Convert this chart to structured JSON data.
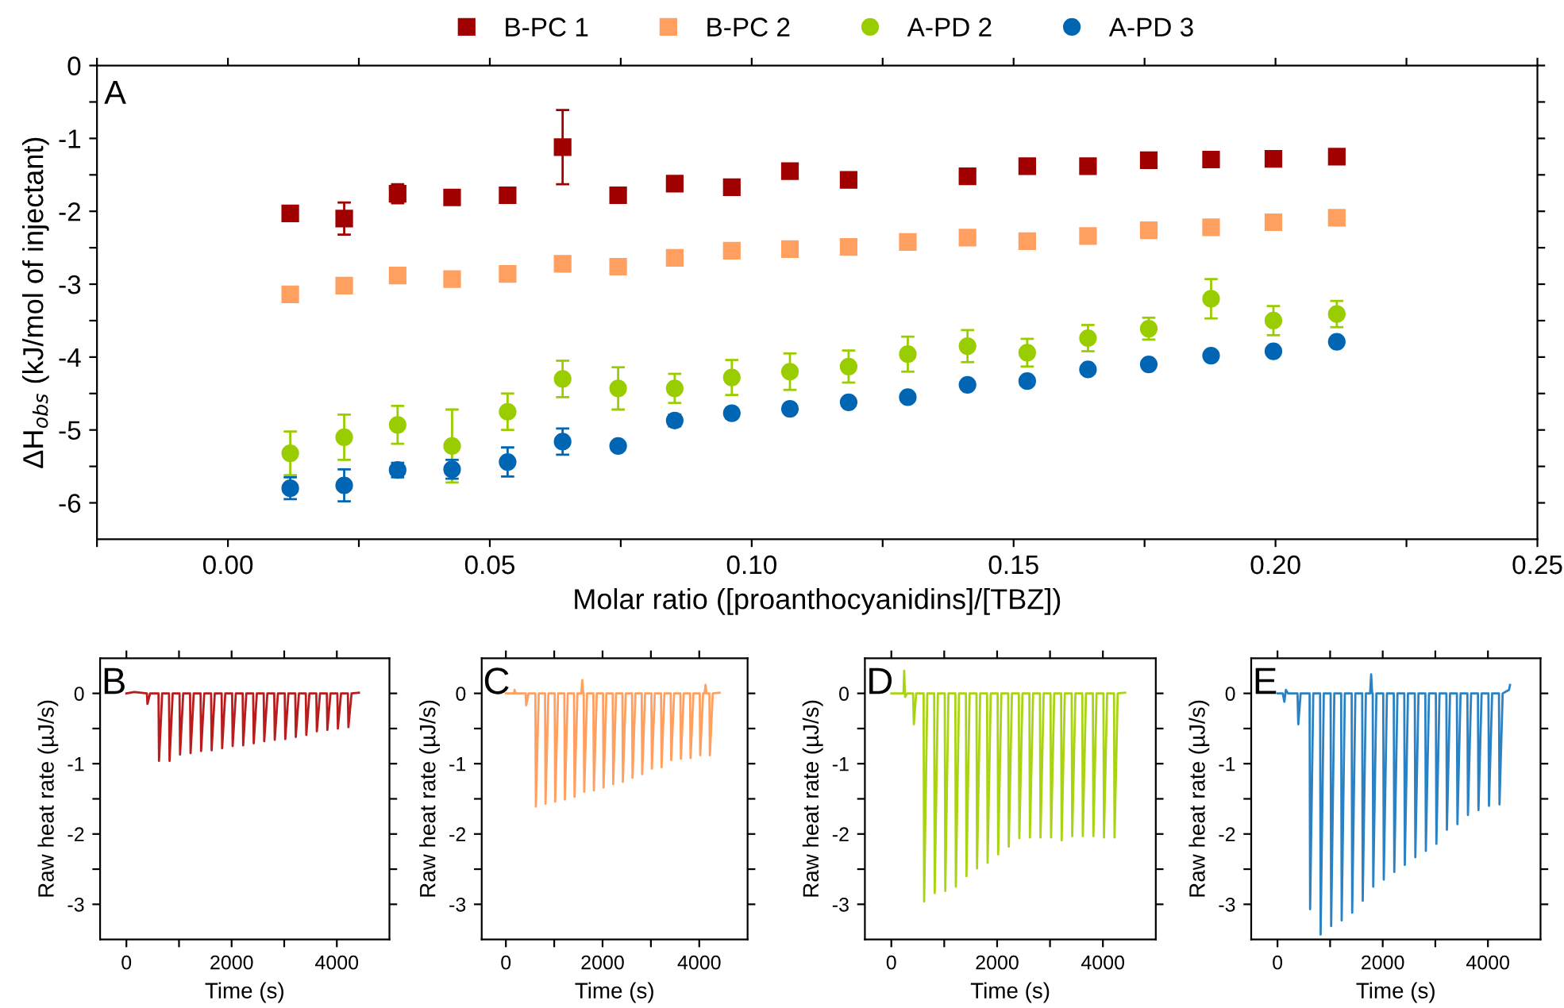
{
  "chart_data": [
    {
      "type": "scatter",
      "xlabel": "Molar ratio ([proanthocyanidins]/[TBZ])",
      "ylabel": "ΔH$_{obs}$ (kJ/mol of injectant)",
      "annotations": [
        "A"
      ],
      "legend": "top",
      "xlim": [
        -0.025,
        0.25
      ],
      "xticks": [
        {
          "value": -0.025,
          "label": null
        },
        {
          "value": 0,
          "label": "0.00"
        },
        {
          "value": 0.025,
          "label": null
        },
        {
          "value": 0.05,
          "label": "0.05"
        },
        {
          "value": 0.075,
          "label": null
        },
        {
          "value": 0.1,
          "label": "0.10"
        },
        {
          "value": 0.125,
          "label": null
        },
        {
          "value": 0.15,
          "label": "0.15"
        },
        {
          "value": 0.175,
          "label": null
        },
        {
          "value": 0.2,
          "label": "0.20"
        },
        {
          "value": 0.225,
          "label": null
        },
        {
          "value": 0.25,
          "label": "0.25"
        }
      ],
      "ylim": [
        -6.5,
        0
      ],
      "yticks": [
        0,
        {
          "value": -0.5,
          "label": null
        },
        -1,
        {
          "value": -1.5,
          "label": null
        },
        -2,
        {
          "value": -2.5,
          "label": null
        },
        -3,
        {
          "value": -3.5,
          "label": null
        },
        -4,
        {
          "value": -4.5,
          "label": null
        },
        -5,
        {
          "value": -5.5,
          "label": null
        },
        -6
      ],
      "x": [
        0.0119,
        0.0222,
        0.0324,
        0.0428,
        0.0534,
        0.0639,
        0.0745,
        0.0853,
        0.0962,
        0.1073,
        0.1185,
        0.1298,
        0.1412,
        0.1526,
        0.1642,
        0.1758,
        0.1877,
        0.1996,
        0.2117
      ],
      "series": [
        {
          "name": "B-PC 1",
          "color": "#a00000",
          "marker": "square",
          "values": [
            -2.03,
            -2.1,
            -1.76,
            -1.81,
            -1.78,
            -1.12,
            -1.78,
            -1.62,
            -1.67,
            -1.45,
            -1.57,
            null,
            -1.52,
            -1.38,
            -1.38,
            -1.3,
            -1.29,
            -1.28,
            -1.25
          ],
          "errors": [
            0.1,
            0.22,
            0.13,
            0.05,
            0.05,
            0.51,
            0.05,
            0.05,
            0.08,
            0.05,
            0.05,
            null,
            0.05,
            0.05,
            0.05,
            0.05,
            0.05,
            0.08,
            0.05
          ]
        },
        {
          "name": "B-PC 2",
          "color": "#ffa060",
          "marker": "square",
          "values": [
            -3.14,
            -3.02,
            -2.88,
            -2.93,
            -2.86,
            -2.72,
            -2.76,
            -2.64,
            -2.54,
            -2.52,
            -2.49,
            -2.42,
            -2.36,
            -2.41,
            -2.34,
            -2.26,
            -2.22,
            -2.15,
            -2.09
          ],
          "errors": [
            0.05,
            0.05,
            0.05,
            0.05,
            0.05,
            0.05,
            0.05,
            0.05,
            0.05,
            0.05,
            0.05,
            0.05,
            0.05,
            0.05,
            0.05,
            0.07,
            0.05,
            0.05,
            0.05
          ]
        },
        {
          "name": "A-PD 2",
          "color": "#9acd00",
          "marker": "circle",
          "values": [
            -5.32,
            -5.1,
            -4.93,
            -5.22,
            -4.75,
            -4.3,
            -4.43,
            -4.43,
            -4.28,
            -4.2,
            -4.13,
            -3.96,
            -3.85,
            -3.94,
            -3.74,
            -3.61,
            -3.2,
            -3.5,
            -3.41
          ],
          "errors": [
            0.3,
            0.31,
            0.26,
            0.5,
            0.25,
            0.25,
            0.29,
            0.2,
            0.24,
            0.25,
            0.22,
            0.24,
            0.22,
            0.19,
            0.18,
            0.15,
            0.27,
            0.2,
            0.18
          ]
        },
        {
          "name": "A-PD 3",
          "color": "#0066b3",
          "marker": "circle",
          "values": [
            -5.8,
            -5.76,
            -5.55,
            -5.54,
            -5.44,
            -5.16,
            -5.22,
            -4.87,
            -4.77,
            -4.71,
            -4.62,
            -4.55,
            -4.38,
            -4.33,
            -4.17,
            -4.1,
            -3.98,
            -3.92,
            -3.79
          ],
          "errors": [
            0.15,
            0.22,
            0.1,
            0.13,
            0.2,
            0.18,
            0.04,
            0.08,
            0.07,
            0.05,
            0.05,
            0.04,
            0.04,
            0.04,
            0.04,
            0.04,
            0.04,
            0.04,
            0.04
          ]
        }
      ]
    },
    {
      "type": "line",
      "xlabel": "Time (s)",
      "ylabel": "Raw heat rate (µJ/s)",
      "annotations": [
        "B"
      ],
      "xlim": [
        -500,
        5000
      ],
      "xticks": [
        0,
        {
          "value": 1000,
          "label": null
        },
        2000,
        {
          "value": 3000,
          "label": null
        },
        4000
      ],
      "ylim": [
        -3.5,
        0.5
      ],
      "yticks": [
        0,
        {
          "value": -0.5,
          "label": null
        },
        -1,
        {
          "value": -1.5,
          "label": null
        },
        -2,
        {
          "value": -2.5,
          "label": null
        },
        -3
      ],
      "series": [
        {
          "color": "#b81c1c",
          "x": [
            0,
            150,
            390,
            400,
            450,
            610,
            620,
            680,
            810,
            820,
            880,
            1010,
            1020,
            1080,
            1210,
            1220,
            1280,
            1410,
            1420,
            1480,
            1610,
            1620,
            1680,
            1810,
            1820,
            1880,
            2010,
            2020,
            2080,
            2210,
            2220,
            2280,
            2410,
            2420,
            2480,
            2610,
            2620,
            2680,
            2810,
            2820,
            2880,
            3010,
            3020,
            3080,
            3210,
            3220,
            3280,
            3410,
            3420,
            3480,
            3610,
            3620,
            3680,
            3810,
            3820,
            3880,
            4010,
            4020,
            4080,
            4210,
            4220,
            4280,
            4420
          ],
          "values": [
            0,
            0.02,
            0,
            -0.15,
            0,
            0,
            -0.96,
            0,
            0,
            -0.96,
            0,
            0,
            -0.87,
            0,
            0,
            -0.85,
            0,
            0,
            -0.82,
            0,
            0,
            -0.81,
            0,
            0,
            -0.78,
            0,
            0,
            -0.75,
            0,
            0,
            -0.74,
            0,
            0,
            -0.71,
            0,
            0,
            -0.68,
            0,
            0,
            -0.66,
            0,
            0,
            -0.65,
            0,
            0,
            -0.62,
            0,
            0,
            -0.59,
            0,
            0,
            -0.54,
            0,
            0,
            -0.52,
            0,
            0,
            -0.5,
            0,
            0,
            -0.48,
            0,
            0.01
          ]
        }
      ]
    },
    {
      "type": "line",
      "xlabel": "Time (s)",
      "ylabel": "Raw heat rate (µJ/s)",
      "annotations": [
        "C"
      ],
      "xlim": [
        -500,
        5000
      ],
      "xticks": [
        0,
        {
          "value": 1000,
          "label": null
        },
        2000,
        {
          "value": 3000,
          "label": null
        },
        4000
      ],
      "ylim": [
        -3.5,
        0.5
      ],
      "yticks": [
        0,
        {
          "value": -0.5,
          "label": null
        },
        -1,
        {
          "value": -1.5,
          "label": null
        },
        -2,
        {
          "value": -2.5,
          "label": null
        },
        -3
      ],
      "series": [
        {
          "color": "#ffa060",
          "x": [
            0,
            170,
            180,
            200,
            410,
            420,
            470,
            610,
            620,
            680,
            810,
            820,
            880,
            1010,
            1020,
            1080,
            1210,
            1220,
            1280,
            1410,
            1420,
            1480,
            1560,
            1580,
            1600,
            1610,
            1620,
            1680,
            1810,
            1820,
            1880,
            2010,
            2020,
            2080,
            2210,
            2220,
            2280,
            2410,
            2420,
            2480,
            2610,
            2620,
            2680,
            2810,
            2820,
            2880,
            3010,
            3020,
            3080,
            3210,
            3220,
            3280,
            3410,
            3420,
            3480,
            3610,
            3620,
            3680,
            3810,
            3820,
            3880,
            4010,
            4020,
            4080,
            4110,
            4130,
            4150,
            4210,
            4220,
            4280,
            4420
          ],
          "values": [
            0,
            0,
            0.05,
            0,
            0,
            -0.17,
            0,
            0,
            -1.61,
            0,
            0,
            -1.57,
            0,
            0,
            -1.54,
            0,
            0,
            -1.51,
            0,
            0,
            -1.47,
            0,
            0,
            0.19,
            0,
            0,
            -1.4,
            0,
            0,
            -1.38,
            0,
            0,
            -1.34,
            0,
            0,
            -1.29,
            0,
            0,
            -1.26,
            0,
            0,
            -1.2,
            0,
            0,
            -1.15,
            0,
            0,
            -1.07,
            0,
            0,
            -1.05,
            0,
            0,
            -0.95,
            0,
            0,
            -0.93,
            0,
            0,
            -0.92,
            0,
            0,
            -0.88,
            0,
            0,
            0.12,
            0,
            0,
            -0.88,
            0,
            0.01
          ]
        }
      ]
    },
    {
      "type": "line",
      "xlabel": "Time (s)",
      "ylabel": "Raw heat rate (µJ/s)",
      "annotations": [
        "D"
      ],
      "xlim": [
        -500,
        5000
      ],
      "xticks": [
        0,
        {
          "value": 1000,
          "label": null
        },
        2000,
        {
          "value": 3000,
          "label": null
        },
        4000
      ],
      "ylim": [
        -3.5,
        0.5
      ],
      "yticks": [
        0,
        {
          "value": -0.5,
          "label": null
        },
        -1,
        {
          "value": -1.5,
          "label": null
        },
        -2,
        {
          "value": -2.5,
          "label": null
        },
        -3
      ],
      "series": [
        {
          "color": "#a8d414",
          "x": [
            0,
            230,
            243,
            260,
            300,
            410,
            425,
            470,
            610,
            620,
            680,
            810,
            820,
            880,
            1010,
            1020,
            1080,
            1210,
            1220,
            1280,
            1410,
            1420,
            1480,
            1610,
            1620,
            1680,
            1810,
            1820,
            1880,
            2010,
            2020,
            2080,
            2210,
            2220,
            2280,
            2410,
            2420,
            2480,
            2610,
            2620,
            2680,
            2810,
            2820,
            2880,
            3010,
            3020,
            3080,
            3210,
            3220,
            3280,
            3410,
            3420,
            3480,
            3610,
            3620,
            3680,
            3810,
            3820,
            3880,
            4010,
            4020,
            4080,
            4210,
            4220,
            4280,
            4420
          ],
          "values": [
            0,
            0,
            0.32,
            -0.05,
            0,
            0,
            -0.44,
            0,
            0,
            -2.96,
            0,
            0,
            -2.84,
            0,
            0,
            -2.81,
            0,
            0,
            -2.75,
            0,
            0,
            -2.6,
            0,
            0,
            -2.49,
            0,
            0,
            -2.41,
            0,
            0,
            -2.29,
            0,
            0,
            -2.18,
            0,
            0,
            -2.06,
            0,
            0,
            -2.05,
            0,
            0,
            -2.05,
            0,
            0,
            -2.05,
            0,
            0,
            -2.09,
            0,
            0,
            -2.03,
            0,
            0,
            -2.03,
            0,
            0,
            -2.03,
            0,
            0,
            -2.05,
            0,
            0,
            -2.05,
            0,
            0.01
          ]
        }
      ]
    },
    {
      "type": "line",
      "xlabel": "Time (s)",
      "ylabel": "Raw heat rate (µJ/s)",
      "annotations": [
        "E"
      ],
      "xlim": [
        -500,
        5000
      ],
      "xticks": [
        0,
        {
          "value": 1000,
          "label": null
        },
        2000,
        {
          "value": 3000,
          "label": null
        },
        4000
      ],
      "ylim": [
        -3.5,
        0.5
      ],
      "yticks": [
        0,
        {
          "value": -0.5,
          "label": null
        },
        -1,
        {
          "value": -1.5,
          "label": null
        },
        -2,
        {
          "value": -2.5,
          "label": null
        },
        -3
      ],
      "series": [
        {
          "color": "#2a82c4",
          "x": [
            0,
            100,
            130,
            160,
            200,
            380,
            395,
            440,
            610,
            620,
            680,
            810,
            820,
            880,
            1010,
            1020,
            1080,
            1210,
            1220,
            1280,
            1410,
            1420,
            1480,
            1610,
            1620,
            1680,
            1760,
            1780,
            1800,
            1810,
            1820,
            1880,
            2010,
            2020,
            2080,
            2210,
            2220,
            2280,
            2410,
            2420,
            2480,
            2610,
            2620,
            2680,
            2810,
            2820,
            2880,
            3010,
            3020,
            3080,
            3210,
            3220,
            3280,
            3410,
            3420,
            3480,
            3610,
            3620,
            3680,
            3810,
            3820,
            3880,
            4010,
            4020,
            4080,
            4210,
            4220,
            4280,
            4400,
            4420
          ],
          "values": [
            0,
            0,
            -0.12,
            0.05,
            0,
            0,
            -0.44,
            0,
            0,
            -3.07,
            0,
            0,
            -3.43,
            0,
            0,
            -3.31,
            0,
            0,
            -3.23,
            0,
            0,
            -3.12,
            0,
            0,
            -2.95,
            0,
            0,
            0.27,
            0,
            0,
            -2.75,
            0,
            0,
            -2.65,
            0,
            0,
            -2.54,
            0,
            0,
            -2.44,
            0,
            0,
            -2.33,
            0,
            0,
            -2.24,
            0,
            0,
            -2.14,
            0,
            0,
            -1.94,
            0,
            0,
            -1.86,
            0,
            0,
            -1.73,
            0,
            0,
            -1.66,
            0,
            0,
            -1.6,
            0,
            0,
            -1.58,
            0,
            0.05,
            0.12
          ]
        }
      ]
    }
  ]
}
